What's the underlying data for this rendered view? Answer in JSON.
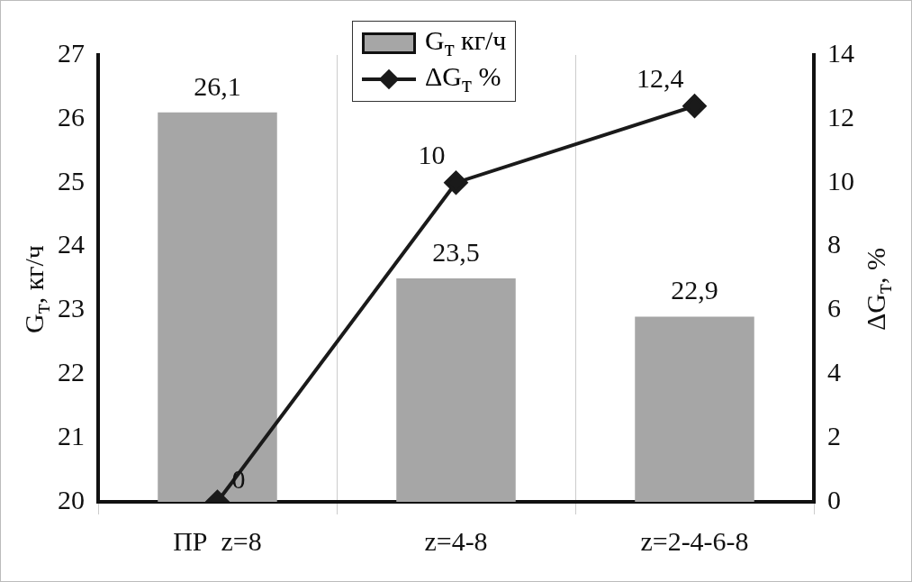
{
  "chart_data": {
    "type": "bar",
    "categories": [
      "ПР  z=8",
      "z=4-8",
      "z=2-4-6-8"
    ],
    "series": [
      {
        "name": "G$_{т}$  кг/ч",
        "color": "#a6a6a6",
        "values": [
          26.1,
          23.5,
          22.9
        ],
        "value_labels": [
          "26,1",
          "23,5",
          "22,9"
        ]
      },
      {
        "name": "ΔG$_{т}$ %",
        "type": "line",
        "axis": "y2",
        "color": "#1a1a1a",
        "values": [
          0,
          10,
          12.4
        ],
        "value_labels": [
          "0",
          "10",
          "12,4"
        ],
        "marker": "diamond"
      }
    ],
    "ylabel": "G$_{т}$, кг/ч",
    "y2label": "ΔG$_{т}$,  %",
    "ylim": [
      20,
      27
    ],
    "yticks": [
      20,
      21,
      22,
      23,
      24,
      25,
      26,
      27
    ],
    "y2lim": [
      0,
      14
    ],
    "y2ticks": [
      0,
      2,
      4,
      6,
      8,
      10,
      12,
      14
    ],
    "grid": "x",
    "legend": "top"
  }
}
